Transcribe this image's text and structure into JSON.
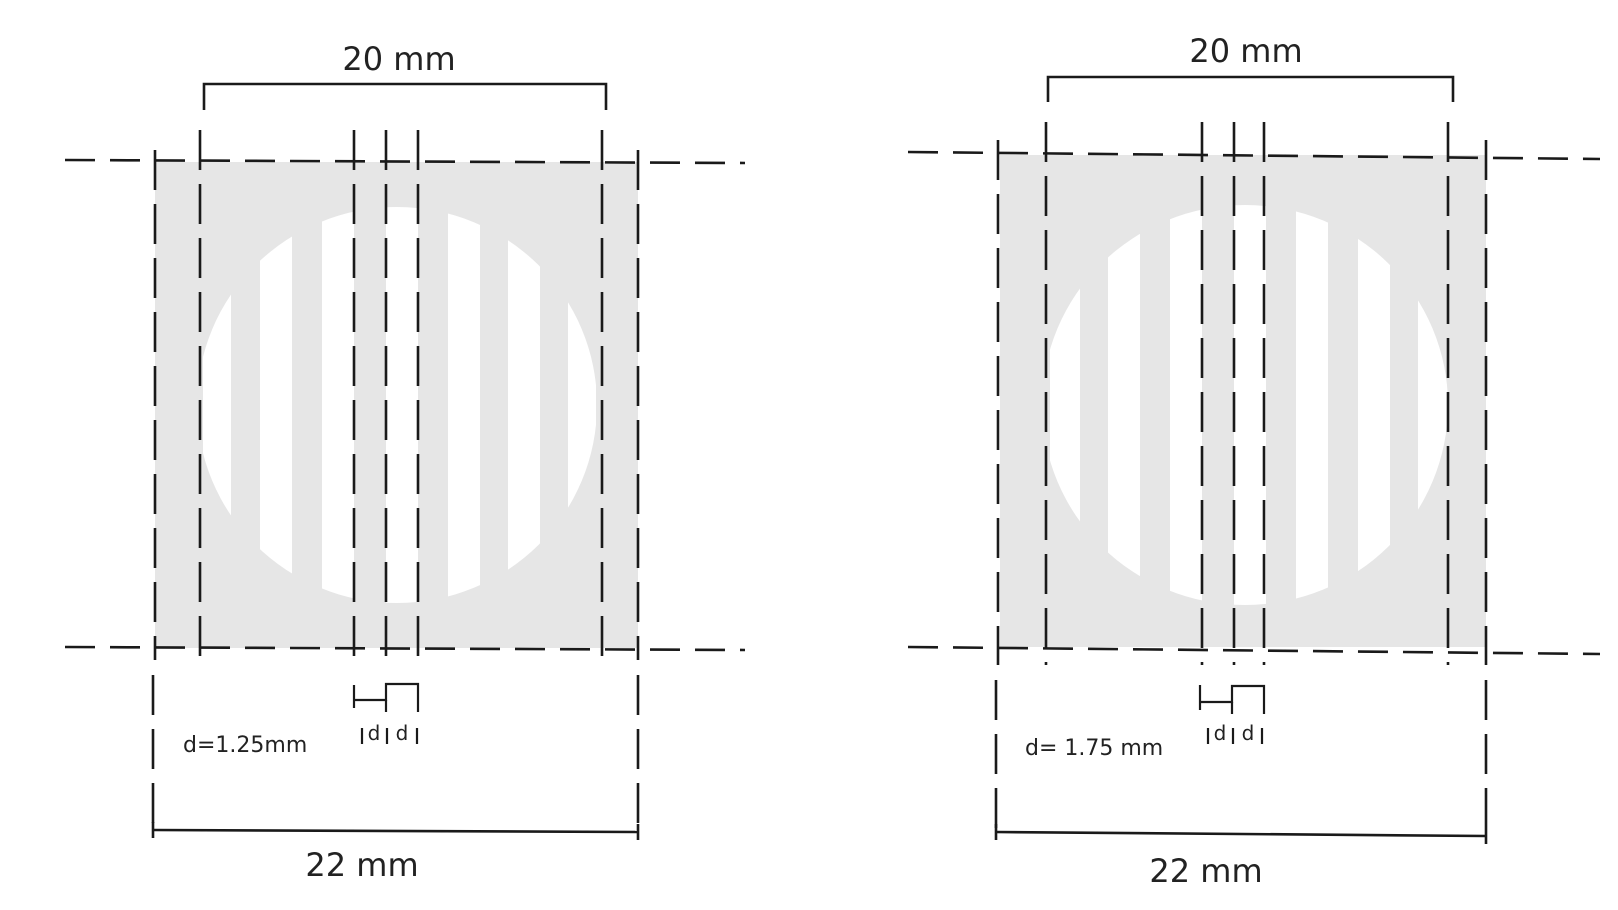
{
  "colors": {
    "panel_fill": "#e6e6e6",
    "slit_fill": "#ffffff",
    "line": "#1a1a1a"
  },
  "panels": [
    {
      "top_dimension": "20 mm",
      "bottom_dimension": "22 mm",
      "d_value_label": "d=1.25mm",
      "d_marker_left": "d",
      "d_marker_right": "d"
    },
    {
      "top_dimension": "20 mm",
      "bottom_dimension": "22 mm",
      "d_value_label": "d= 1.75 mm",
      "d_marker_left": "d",
      "d_marker_right": "d"
    }
  ]
}
